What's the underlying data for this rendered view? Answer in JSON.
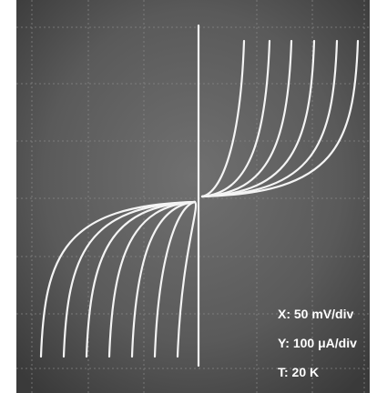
{
  "annotations": {
    "x_scale": "X: 50 mV/div",
    "y_scale": "Y: 100 μA/div",
    "temperature": "T: 20 K"
  }
}
